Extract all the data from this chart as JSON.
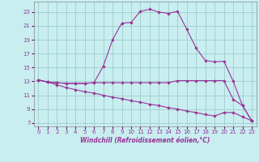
{
  "xlabel": "Windchill (Refroidissement éolien,°C)",
  "bg_color": "#c8eef0",
  "grid_color": "#a0cccc",
  "line_color": "#993399",
  "x_ticks": [
    0,
    1,
    2,
    3,
    4,
    5,
    6,
    7,
    8,
    9,
    10,
    11,
    12,
    13,
    14,
    15,
    16,
    17,
    18,
    19,
    20,
    21,
    22,
    23
  ],
  "y_ticks": [
    7,
    9,
    11,
    13,
    15,
    17,
    19,
    21,
    23
  ],
  "xlim": [
    -0.5,
    23.5
  ],
  "ylim": [
    6.5,
    24.5
  ],
  "line1_x": [
    0,
    1,
    2,
    3,
    4,
    5,
    6,
    7,
    8,
    9,
    10,
    11,
    12,
    13,
    14,
    15,
    16,
    17,
    18,
    19,
    20,
    21,
    22,
    23
  ],
  "line1_y": [
    13.2,
    12.9,
    12.8,
    12.7,
    12.7,
    12.7,
    12.8,
    15.2,
    19.0,
    21.4,
    21.5,
    23.1,
    23.4,
    23.0,
    22.8,
    23.1,
    20.5,
    17.8,
    16.0,
    15.8,
    15.9,
    13.0,
    9.5,
    7.3
  ],
  "line2_x": [
    0,
    1,
    2,
    3,
    4,
    5,
    6,
    7,
    8,
    9,
    10,
    11,
    12,
    13,
    14,
    15,
    16,
    17,
    18,
    19,
    20,
    21,
    22,
    23
  ],
  "line2_y": [
    13.2,
    12.9,
    12.8,
    12.7,
    12.7,
    12.7,
    12.8,
    12.8,
    12.8,
    12.8,
    12.8,
    12.8,
    12.8,
    12.8,
    12.8,
    13.1,
    13.1,
    13.1,
    13.1,
    13.1,
    13.1,
    10.4,
    9.5,
    7.3
  ],
  "line3_x": [
    0,
    1,
    2,
    3,
    4,
    5,
    6,
    7,
    8,
    9,
    10,
    11,
    12,
    13,
    14,
    15,
    16,
    17,
    18,
    19,
    20,
    21,
    22,
    23
  ],
  "line3_y": [
    13.2,
    12.9,
    12.5,
    12.1,
    11.8,
    11.5,
    11.3,
    11.0,
    10.7,
    10.5,
    10.2,
    10.0,
    9.7,
    9.5,
    9.2,
    9.0,
    8.7,
    8.5,
    8.2,
    8.0,
    8.5,
    8.5,
    7.9,
    7.3
  ],
  "tick_fontsize": 5.0,
  "xlabel_fontsize": 5.5
}
